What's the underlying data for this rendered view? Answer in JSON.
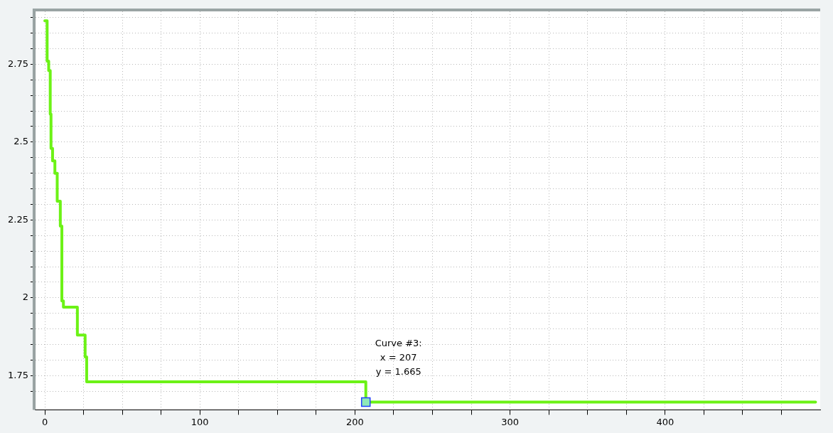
{
  "chart_data": {
    "type": "step",
    "x": [
      0,
      1.5,
      2.5,
      3.5,
      4,
      5,
      6.5,
      8,
      10,
      11,
      12,
      21,
      26,
      27,
      207,
      497
    ],
    "series": [
      {
        "color": "#6cf216",
        "values": [
          2.89,
          2.76,
          2.73,
          2.59,
          2.48,
          2.44,
          2.4,
          2.31,
          2.23,
          1.99,
          1.97,
          1.88,
          1.81,
          1.73,
          1.665,
          1.665
        ]
      }
    ],
    "xlim": [
      -6,
      500
    ],
    "xticks": [
      0,
      {
        "value": 25,
        "label": null
      },
      {
        "value": 50,
        "label": null
      },
      {
        "value": 75,
        "label": null
      },
      100,
      {
        "value": 125,
        "label": null
      },
      {
        "value": 150,
        "label": null
      },
      {
        "value": 175,
        "label": null
      },
      200,
      {
        "value": 225,
        "label": null
      },
      {
        "value": 250,
        "label": null
      },
      {
        "value": 275,
        "label": null
      },
      300,
      {
        "value": 325,
        "label": null
      },
      {
        "value": 350,
        "label": null
      },
      {
        "value": 375,
        "label": null
      },
      400,
      {
        "value": 425,
        "label": null
      },
      {
        "value": 450,
        "label": null
      },
      {
        "value": 475,
        "label": null
      }
    ],
    "ylim": [
      1.64,
      2.92
    ],
    "yticks": [
      {
        "value": 1.7,
        "label": null
      },
      1.75,
      {
        "value": 1.8,
        "label": null
      },
      {
        "value": 1.85,
        "label": null
      },
      {
        "value": 1.9,
        "label": null
      },
      {
        "value": 1.95,
        "label": null
      },
      2,
      {
        "value": 2.05,
        "label": null
      },
      {
        "value": 2.1,
        "label": null
      },
      {
        "value": 2.15,
        "label": null
      },
      {
        "value": 2.2,
        "label": null
      },
      2.25,
      {
        "value": 2.3,
        "label": null
      },
      {
        "value": 2.35,
        "label": null
      },
      {
        "value": 2.4,
        "label": null
      },
      {
        "value": 2.45,
        "label": null
      },
      2.5,
      {
        "value": 2.55,
        "label": null
      },
      {
        "value": 2.6,
        "label": null
      },
      {
        "value": 2.65,
        "label": null
      },
      {
        "value": 2.7,
        "label": null
      },
      2.75,
      {
        "value": 2.8,
        "label": null
      },
      {
        "value": 2.85,
        "label": null
      },
      {
        "value": 2.9,
        "label": null
      }
    ],
    "grid": true,
    "legend": false,
    "marker": "none",
    "annotations": [
      {
        "text": "Curve #3:\nx = 207\ny = 1.665",
        "x": 207,
        "y": 1.665
      }
    ]
  }
}
